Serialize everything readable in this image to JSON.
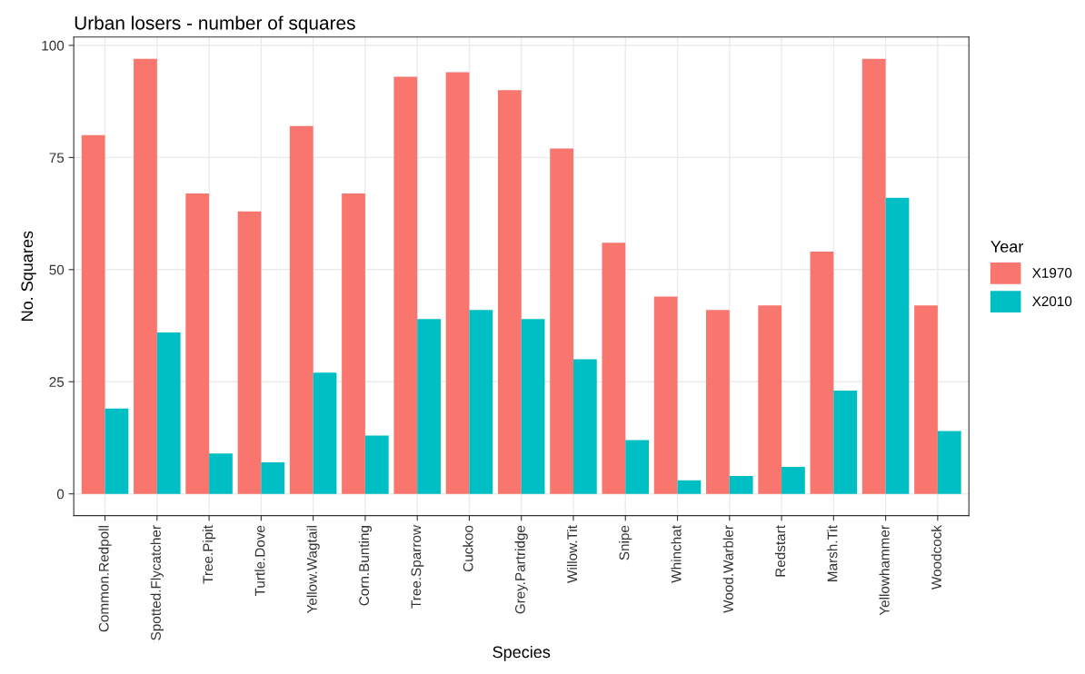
{
  "chart_data": {
    "type": "bar",
    "title": "Urban losers - number of squares",
    "xlabel": "Species",
    "ylabel": "No. Squares",
    "legend_title": "Year",
    "categories": [
      "Common.Redpoll",
      "Spotted.Flycatcher",
      "Tree.Pipit",
      "Turtle.Dove",
      "Yellow.Wagtail",
      "Corn.Bunting",
      "Tree.Sparrow",
      "Cuckoo",
      "Grey.Partridge",
      "Willow.Tit",
      "Snipe",
      "Whinchat",
      "Wood.Warbler",
      "Redstart",
      "Marsh.Tit",
      "Yellowhammer",
      "Woodcock"
    ],
    "series": [
      {
        "name": "X1970",
        "color": "#f8766d",
        "values": [
          80,
          97,
          67,
          63,
          82,
          67,
          93,
          94,
          90,
          77,
          56,
          44,
          41,
          42,
          54,
          97,
          42
        ]
      },
      {
        "name": "X2010",
        "color": "#00bfc4",
        "values": [
          19,
          36,
          9,
          7,
          27,
          13,
          39,
          41,
          39,
          30,
          12,
          3,
          4,
          6,
          23,
          66,
          14
        ]
      }
    ],
    "ylim": [
      -4.85,
      101.85
    ],
    "yticks": [
      0,
      25,
      50,
      75,
      100
    ],
    "grid": true,
    "legend": "right"
  }
}
